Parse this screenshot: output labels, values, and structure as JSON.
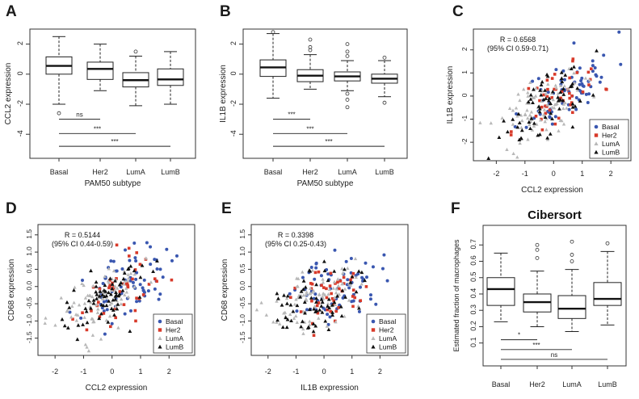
{
  "colors": {
    "basal": "#3a57b0",
    "her2": "#d83a2a",
    "luma": "#b8b8b8",
    "lumb": "#111111",
    "axis": "#333333",
    "box_fill": "#ffffff"
  },
  "chart_data": [
    {
      "panel": "A",
      "type": "box",
      "xlabel": "PAM50 subtype",
      "ylabel": "CCL2 expression",
      "categories": [
        "Basal",
        "Her2",
        "LumA",
        "LumB"
      ],
      "ylim": [
        -5.6,
        3.0
      ],
      "yticks": [
        2,
        0,
        -2,
        -4
      ],
      "ytick_labels": [
        "2",
        "0",
        "-2",
        "-4"
      ],
      "boxes": [
        {
          "low": -2.0,
          "q1": 0.0,
          "median": 0.55,
          "q3": 1.15,
          "high": 2.5,
          "outliers": [
            -2.6
          ]
        },
        {
          "low": -1.1,
          "q1": -0.35,
          "median": 0.35,
          "q3": 0.8,
          "high": 2.0,
          "outliers": []
        },
        {
          "low": -2.1,
          "q1": -0.85,
          "median": -0.4,
          "q3": 0.1,
          "high": 1.2,
          "outliers": [
            1.5
          ]
        },
        {
          "low": -2.0,
          "q1": -0.75,
          "median": -0.35,
          "q3": 0.35,
          "high": 1.5,
          "outliers": []
        }
      ],
      "brackets": [
        {
          "from": 0,
          "to": 1,
          "y": -3.0,
          "label": "ns"
        },
        {
          "from": 0,
          "to": 2,
          "y": -3.95,
          "label": "***"
        },
        {
          "from": 0,
          "to": 3,
          "y": -4.8,
          "label": "***"
        }
      ]
    },
    {
      "panel": "B",
      "type": "box",
      "xlabel": "PAM50 subtype",
      "ylabel": "IL1B expression",
      "categories": [
        "Basal",
        "Her2",
        "LumA",
        "LumB"
      ],
      "ylim": [
        -5.6,
        3.0
      ],
      "yticks": [
        2,
        0,
        -2,
        -4
      ],
      "ytick_labels": [
        "2",
        "0",
        "-2",
        "-4"
      ],
      "boxes": [
        {
          "low": -1.6,
          "q1": -0.15,
          "median": 0.45,
          "q3": 0.95,
          "high": 2.7,
          "outliers": [
            2.8
          ]
        },
        {
          "low": -1.0,
          "q1": -0.5,
          "median": -0.1,
          "q3": 0.3,
          "high": 1.3,
          "outliers": [
            1.6,
            1.8,
            2.3
          ]
        },
        {
          "low": -1.1,
          "q1": -0.45,
          "median": -0.15,
          "q3": 0.15,
          "high": 0.9,
          "outliers": [
            -1.3,
            -1.7,
            -2.2,
            1.2,
            1.5,
            2.0
          ]
        },
        {
          "low": -1.5,
          "q1": -0.6,
          "median": -0.3,
          "q3": 0.0,
          "high": 0.9,
          "outliers": [
            -1.9,
            1.1
          ]
        }
      ],
      "brackets": [
        {
          "from": 0,
          "to": 1,
          "y": -3.0,
          "label": "***"
        },
        {
          "from": 0,
          "to": 2,
          "y": -3.95,
          "label": "***"
        },
        {
          "from": 0,
          "to": 3,
          "y": -4.8,
          "label": "***"
        }
      ]
    },
    {
      "panel": "C",
      "type": "scatter",
      "xlabel": "CCL2 expression",
      "ylabel": "IL1B expression",
      "xlim": [
        -2.8,
        2.7
      ],
      "ylim": [
        -2.8,
        2.9
      ],
      "xticks": [
        -2,
        -1,
        0,
        1,
        2
      ],
      "xtick_labels": [
        "-2",
        "-1",
        "0",
        "1",
        "2"
      ],
      "yticks": [
        -2,
        -1,
        0,
        1,
        2
      ],
      "ytick_labels": [
        "-2",
        "-1",
        "0",
        "1",
        "2"
      ],
      "annotation": [
        "R = 0.6568",
        "(95% CI 0.59-0.71)"
      ],
      "legend": [
        "Basal",
        "Her2",
        "LumA",
        "LumB"
      ],
      "legend_position": "bottom-right",
      "seed": 11,
      "slope": 0.62
    },
    {
      "panel": "D",
      "type": "scatter",
      "xlabel": "CCL2 expression",
      "ylabel": "CD68 expression",
      "xlim": [
        -2.6,
        2.9
      ],
      "ylim": [
        -2.0,
        1.8
      ],
      "xticks": [
        -2,
        -1,
        0,
        1,
        2
      ],
      "xtick_labels": [
        "-2",
        "-1",
        "0",
        "1",
        "2"
      ],
      "yticks": [
        -1.5,
        -1.0,
        -0.5,
        0.0,
        0.5,
        1.0,
        1.5
      ],
      "ytick_labels": [
        "-1.5",
        "-1.0",
        "-0.5",
        "0.0",
        "0.5",
        "1.0",
        "1.5"
      ],
      "annotation": [
        "R = 0.5144",
        "(95% CI 0.44-0.59)"
      ],
      "legend": [
        "Basal",
        "Her2",
        "LumA",
        "LumB"
      ],
      "legend_position": "bottom-right",
      "seed": 23,
      "slope": 0.33
    },
    {
      "panel": "E",
      "type": "scatter",
      "xlabel": "IL1B expression",
      "ylabel": "CD68 expression",
      "xlim": [
        -2.6,
        3.0
      ],
      "ylim": [
        -2.0,
        1.8
      ],
      "xticks": [
        -2,
        -1,
        0,
        1,
        2
      ],
      "xtick_labels": [
        "-2",
        "-1",
        "0",
        "1",
        "2"
      ],
      "yticks": [
        -1.5,
        -1.0,
        -0.5,
        0.0,
        0.5,
        1.0,
        1.5
      ],
      "ytick_labels": [
        "-1.5",
        "-1.0",
        "-0.5",
        "0.0",
        "0.5",
        "1.0",
        "1.5"
      ],
      "annotation": [
        "R = 0.3398",
        "(95% CI 0.25-0.43)"
      ],
      "legend": [
        "Basal",
        "Her2",
        "LumA",
        "LumB"
      ],
      "legend_position": "bottom-right",
      "seed": 37,
      "slope": 0.22
    },
    {
      "panel": "F",
      "type": "box",
      "title": "Cibersort",
      "xlabel": "",
      "ylabel": "Estimated fraction of macrophages",
      "categories": [
        "Basal",
        "Her2",
        "LumA",
        "LumB"
      ],
      "ylim": [
        -0.04,
        0.82
      ],
      "yticks": [
        0.1,
        0.2,
        0.3,
        0.4,
        0.5,
        0.6,
        0.7
      ],
      "ytick_labels": [
        "0.1",
        "0.2",
        "0.3",
        "0.4",
        "0.5",
        "0.6",
        "0.7"
      ],
      "boxes": [
        {
          "low": 0.23,
          "q1": 0.33,
          "median": 0.43,
          "q3": 0.5,
          "high": 0.65,
          "outliers": []
        },
        {
          "low": 0.2,
          "q1": 0.29,
          "median": 0.35,
          "q3": 0.4,
          "high": 0.54,
          "outliers": [
            0.62,
            0.67,
            0.7
          ]
        },
        {
          "low": 0.17,
          "q1": 0.25,
          "median": 0.31,
          "q3": 0.39,
          "high": 0.55,
          "outliers": [
            0.6,
            0.64,
            0.72
          ]
        },
        {
          "low": 0.21,
          "q1": 0.33,
          "median": 0.37,
          "q3": 0.47,
          "high": 0.66,
          "outliers": [
            0.71
          ]
        }
      ],
      "brackets": [
        {
          "from": 0,
          "to": 1,
          "y": 0.12,
          "label": "*"
        },
        {
          "from": 0,
          "to": 2,
          "y": 0.06,
          "label": "***"
        },
        {
          "from": 0,
          "to": 3,
          "y": 0.0,
          "label": "ns"
        }
      ]
    }
  ]
}
